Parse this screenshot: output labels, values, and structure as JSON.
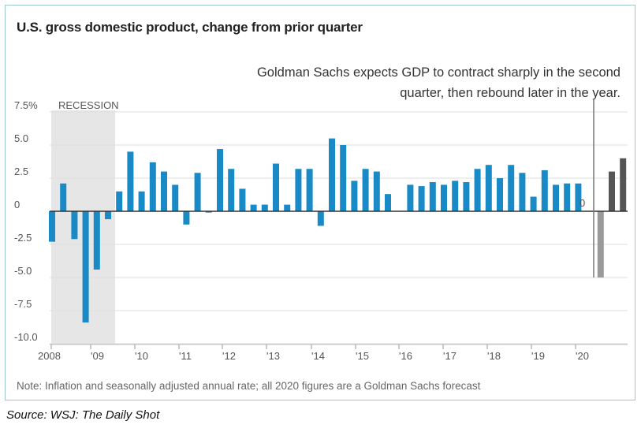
{
  "source": "Source: WSJ: The Daily Shot",
  "chart_data": {
    "type": "bar",
    "title": "U.S. gross domestic product, change from prior quarter",
    "annotation": "Goldman Sachs expects GDP to contract sharply in the second quarter, then rebound later in the year.",
    "note": "Note: Inflation and seasonally adjusted annual rate; all 2020 figures are a Goldman Sachs forecast",
    "shaded_region_label": "RECESSION",
    "ylim": [
      -10,
      7.5
    ],
    "y_ticks": [
      {
        "value": 7.5,
        "label": "7.5%"
      },
      {
        "value": 5,
        "label": "5.0"
      },
      {
        "value": 2.5,
        "label": "2.5"
      },
      {
        "value": 0,
        "label": "0"
      },
      {
        "value": -2.5,
        "label": "-2.5"
      },
      {
        "value": -5,
        "label": "-5.0"
      },
      {
        "value": -7.5,
        "label": "-7.5"
      },
      {
        "value": -10,
        "label": "-10.0"
      }
    ],
    "x_ticks": [
      "2008",
      "'09",
      "'10",
      "'11",
      "'12",
      "'13",
      "'14",
      "'15",
      "'16",
      "'17",
      "'18",
      "'19",
      "'20"
    ],
    "zero_label": "0",
    "colors": {
      "actual": "#1a8ac6",
      "forecast_q2": "#9a9a9a",
      "forecast": "#555555",
      "recession": "#e6e6e6",
      "grid": "#dddddd"
    },
    "values": [
      -2.3,
      2.1,
      -2.1,
      -8.4,
      -4.4,
      -0.6,
      1.5,
      4.5,
      1.5,
      3.7,
      3.0,
      2.0,
      -1.0,
      2.9,
      -0.1,
      4.7,
      3.2,
      1.7,
      0.5,
      0.5,
      3.6,
      0.5,
      3.2,
      3.2,
      -1.1,
      5.5,
      5.0,
      2.3,
      3.2,
      3.0,
      1.3,
      0,
      2.0,
      1.9,
      2.2,
      2.0,
      2.3,
      2.2,
      3.2,
      3.5,
      2.5,
      3.5,
      2.9,
      1.1,
      3.1,
      2.0,
      2.1,
      2.1,
      0,
      -5.0,
      3.0,
      4.0
    ],
    "series_kind": [
      "actual",
      "actual",
      "actual",
      "actual",
      "actual",
      "actual",
      "actual",
      "actual",
      "actual",
      "actual",
      "actual",
      "actual",
      "actual",
      "actual",
      "actual",
      "actual",
      "actual",
      "actual",
      "actual",
      "actual",
      "actual",
      "actual",
      "actual",
      "actual",
      "actual",
      "actual",
      "actual",
      "actual",
      "actual",
      "actual",
      "actual",
      "actual",
      "actual",
      "actual",
      "actual",
      "actual",
      "actual",
      "actual",
      "actual",
      "actual",
      "actual",
      "actual",
      "actual",
      "actual",
      "actual",
      "actual",
      "actual",
      "actual",
      "forecast",
      "forecast_q2",
      "forecast",
      "forecast"
    ]
  }
}
